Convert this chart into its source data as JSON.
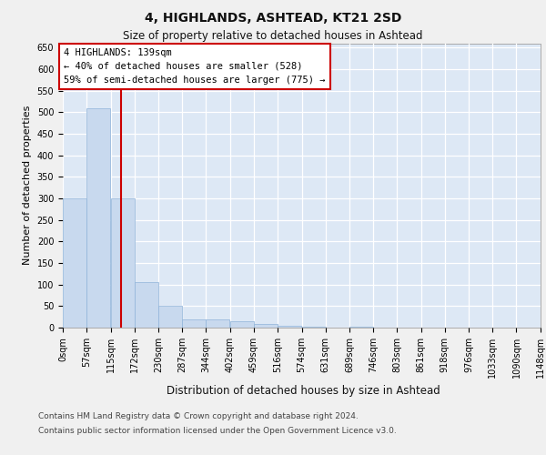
{
  "title": "4, HIGHLANDS, ASHTEAD, KT21 2SD",
  "subtitle": "Size of property relative to detached houses in Ashtead",
  "xlabel": "Distribution of detached houses by size in Ashtead",
  "ylabel": "Number of detached properties",
  "footer_line1": "Contains HM Land Registry data © Crown copyright and database right 2024.",
  "footer_line2": "Contains public sector information licensed under the Open Government Licence v3.0.",
  "bar_color": "#c8d9ee",
  "bar_edge_color": "#8fb3d9",
  "background_color": "#dde8f5",
  "grid_color": "#ffffff",
  "red_line_color": "#cc0000",
  "annotation_text_line1": "4 HIGHLANDS: 139sqm",
  "annotation_text_line2": "← 40% of detached houses are smaller (528)",
  "annotation_text_line3": "59% of semi-detached houses are larger (775) →",
  "property_size": 139,
  "bin_edges": [
    0,
    57,
    115,
    172,
    230,
    287,
    344,
    402,
    459,
    516,
    574,
    631,
    689,
    746,
    803,
    861,
    918,
    976,
    1033,
    1090,
    1148
  ],
  "bin_labels": [
    "0sqm",
    "57sqm",
    "115sqm",
    "172sqm",
    "230sqm",
    "287sqm",
    "344sqm",
    "402sqm",
    "459sqm",
    "516sqm",
    "574sqm",
    "631sqm",
    "689sqm",
    "746sqm",
    "803sqm",
    "861sqm",
    "918sqm",
    "976sqm",
    "1033sqm",
    "1090sqm",
    "1148sqm"
  ],
  "counts": [
    300,
    510,
    300,
    105,
    50,
    18,
    18,
    15,
    8,
    5,
    3,
    0,
    2,
    0,
    0,
    0,
    0,
    1,
    0,
    0
  ],
  "ylim": [
    0,
    660
  ],
  "yticks": [
    0,
    50,
    100,
    150,
    200,
    250,
    300,
    350,
    400,
    450,
    500,
    550,
    600,
    650
  ],
  "fig_facecolor": "#f0f0f0",
  "title_fontsize": 10,
  "subtitle_fontsize": 8.5,
  "tick_fontsize": 7,
  "ylabel_fontsize": 8,
  "xlabel_fontsize": 8.5,
  "footer_fontsize": 6.5
}
